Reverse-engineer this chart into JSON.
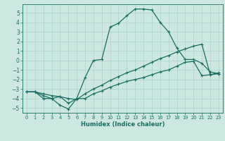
{
  "xlabel": "Humidex (Indice chaleur)",
  "background_color": "#cce8e0",
  "grid_color": "#aad4cc",
  "line_color": "#1a6e62",
  "xlim": [
    -0.5,
    23.5
  ],
  "ylim": [
    -5.5,
    5.9
  ],
  "xticks": [
    0,
    1,
    2,
    3,
    4,
    5,
    6,
    7,
    8,
    9,
    10,
    11,
    12,
    13,
    14,
    15,
    16,
    17,
    18,
    19,
    20,
    21,
    22,
    23
  ],
  "yticks": [
    -5,
    -4,
    -3,
    -2,
    -1,
    0,
    1,
    2,
    3,
    4,
    5
  ],
  "line1_x": [
    0,
    1,
    2,
    3,
    4,
    5,
    6,
    7,
    8,
    9,
    10,
    11,
    12,
    13,
    14,
    15,
    16,
    17,
    18,
    19,
    20,
    21,
    22,
    23
  ],
  "line1_y": [
    -3.3,
    -3.3,
    -4.0,
    -4.0,
    -4.7,
    -5.1,
    -4.0,
    -1.8,
    0.0,
    0.1,
    3.5,
    3.9,
    4.7,
    5.4,
    5.4,
    5.3,
    4.0,
    3.0,
    1.3,
    0.1,
    0.1,
    -0.3,
    -1.2,
    -1.4
  ],
  "line2_x": [
    0,
    1,
    2,
    3,
    4,
    5,
    6,
    7,
    8,
    9,
    10,
    11,
    12,
    13,
    14,
    15,
    16,
    17,
    18,
    19,
    20,
    21,
    22,
    23
  ],
  "line2_y": [
    -3.3,
    -3.3,
    -3.7,
    -4.0,
    -3.8,
    -4.5,
    -4.0,
    -4.0,
    -3.5,
    -3.2,
    -2.8,
    -2.5,
    -2.2,
    -2.0,
    -1.8,
    -1.5,
    -1.2,
    -1.0,
    -0.6,
    -0.2,
    -0.1,
    -1.6,
    -1.5,
    -1.4
  ],
  "line3_x": [
    0,
    1,
    2,
    3,
    4,
    5,
    6,
    7,
    8,
    9,
    10,
    11,
    12,
    13,
    14,
    15,
    16,
    17,
    18,
    19,
    20,
    21,
    22,
    23
  ],
  "line3_y": [
    -3.3,
    -3.3,
    -3.5,
    -3.7,
    -3.8,
    -4.0,
    -4.1,
    -3.5,
    -3.0,
    -2.6,
    -2.1,
    -1.7,
    -1.3,
    -1.0,
    -0.6,
    -0.2,
    0.2,
    0.5,
    0.9,
    1.2,
    1.5,
    1.7,
    -1.5,
    -1.3
  ]
}
